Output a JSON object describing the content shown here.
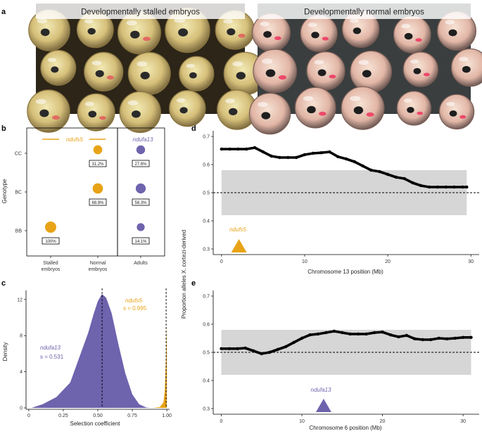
{
  "colors": {
    "ndufs5": "#e8a317",
    "ndufa13": "#6e63ad",
    "null_band": "#d6d6d6",
    "line": "#000000"
  },
  "panel_a": {
    "letter": "a",
    "left_caption": "Developmentally stalled embryos",
    "right_caption": "Developmentally normal embryos"
  },
  "panel_b": {
    "letter": "b",
    "ylabel": "Genotype",
    "genotypes": [
      "CC",
      "BC",
      "BB"
    ],
    "groups": [
      "Stalled embryos",
      "Normal embryos",
      "Adults"
    ],
    "group_label_lines": [
      [
        "Stalled",
        "embryos"
      ],
      [
        "Normal",
        "embryos"
      ],
      [
        "Adults"
      ]
    ],
    "gene_left": "ndufs5",
    "gene_right": "ndufa13",
    "chart_data": {
      "type": "scatter",
      "title": "",
      "xlabel": "",
      "ylabel": "Genotype",
      "series": [
        {
          "name": "ndufs5 stalled embryos",
          "genotypes": [
            "BB"
          ],
          "percent": [
            100
          ],
          "labels": [
            "100%"
          ]
        },
        {
          "name": "ndufs5 normal embryos",
          "genotypes": [
            "CC",
            "BC"
          ],
          "percent": [
            31.2,
            68.8
          ],
          "labels": [
            "31.2%",
            "68.8%"
          ]
        },
        {
          "name": "ndufa13 adults",
          "genotypes": [
            "CC",
            "BC",
            "BB"
          ],
          "percent": [
            27.6,
            58.3,
            14.1
          ],
          "labels": [
            "27.6%",
            "58.3%",
            "14.1%"
          ]
        }
      ]
    }
  },
  "panel_c": {
    "letter": "c",
    "ylabel": "Density",
    "xlabel": "Selection coefficient",
    "gene_ndufa13": "ndufa13",
    "s_ndufa13": "s = 0.531",
    "gene_ndufs5": "ndufs5",
    "s_ndufs5": "s = 0.995",
    "chart_data": {
      "type": "area",
      "xlabel": "Selection coefficient",
      "ylabel": "Density",
      "xlim": [
        -0.02,
        1.02
      ],
      "ylim": [
        0,
        13
      ],
      "xticks": [
        0,
        0.25,
        0.5,
        0.75,
        1
      ],
      "xtick_labels": [
        "0",
        "0.25",
        "0.50",
        "0.75",
        "1.00"
      ],
      "yticks": [
        0,
        4,
        8,
        12
      ],
      "ytick_labels": [
        "0",
        "4",
        "8",
        "12"
      ],
      "series": [
        {
          "name": "ndufa13",
          "x": [
            0.02,
            0.1,
            0.2,
            0.3,
            0.38,
            0.43,
            0.47,
            0.5,
            0.53,
            0.56,
            0.6,
            0.65,
            0.7,
            0.75,
            0.8,
            0.85,
            0.88
          ],
          "y": [
            0,
            0.4,
            1.2,
            2.8,
            6.2,
            8.3,
            10.4,
            11.8,
            12.6,
            12.2,
            10.5,
            7.0,
            3.8,
            1.5,
            0.4,
            0.05,
            0
          ]
        },
        {
          "name": "ndufs5",
          "x": [
            0.9,
            0.95,
            0.975,
            0.985,
            0.99,
            0.995,
            1.0
          ],
          "y": [
            0,
            0.1,
            0.6,
            1.8,
            3.8,
            6.0,
            9.2
          ]
        }
      ],
      "vlines": [
        0.531,
        0.995
      ]
    }
  },
  "panel_shared": {
    "ylabel": "Proportion alleles X. cortezi-derived"
  },
  "panel_d": {
    "letter": "d",
    "xlabel": "Chromosome 13 position (Mb)",
    "gene": "ndufs5",
    "chart_data": {
      "type": "scatter",
      "xlabel": "Chromosome 13 position (Mb)",
      "ylabel": "Proportion alleles X. cortezi-derived",
      "xlim": [
        -1,
        31
      ],
      "ylim": [
        0.28,
        0.72
      ],
      "xticks": [
        0,
        10,
        20,
        30
      ],
      "xtick_labels": [
        "0",
        "10",
        "20",
        "30"
      ],
      "yticks": [
        0.3,
        0.4,
        0.5,
        0.6,
        0.7
      ],
      "ytick_labels": [
        "0.3",
        "0.4",
        "0.5",
        "0.6",
        "0.7"
      ],
      "null_band": [
        0.42,
        0.58
      ],
      "reference_line": 0.5,
      "gene_position_mb": 2.1,
      "x": [
        0,
        1,
        2,
        3,
        4,
        5,
        6,
        7,
        8,
        9,
        10,
        11,
        12,
        13,
        14,
        15,
        16,
        17,
        18,
        19,
        20,
        21,
        22,
        23,
        24,
        25,
        26,
        27,
        28,
        29,
        29.5
      ],
      "y": [
        0.655,
        0.655,
        0.655,
        0.655,
        0.66,
        0.645,
        0.63,
        0.625,
        0.625,
        0.625,
        0.635,
        0.64,
        0.642,
        0.645,
        0.628,
        0.62,
        0.61,
        0.595,
        0.58,
        0.575,
        0.565,
        0.555,
        0.55,
        0.535,
        0.525,
        0.52,
        0.52,
        0.52,
        0.52,
        0.52,
        0.52
      ]
    }
  },
  "panel_e": {
    "letter": "e",
    "xlabel": "Chromosome 6 position (Mb)",
    "gene": "ndufa13",
    "chart_data": {
      "type": "scatter",
      "xlabel": "Chromosome 6 position (Mb)",
      "ylabel": "Proportion alleles X. cortezi-derived",
      "xlim": [
        -1,
        32
      ],
      "ylim": [
        0.28,
        0.72
      ],
      "xticks": [
        0,
        10,
        20,
        30
      ],
      "xtick_labels": [
        "0",
        "10",
        "20",
        "30"
      ],
      "yticks": [
        0.3,
        0.4,
        0.5,
        0.6,
        0.7
      ],
      "ytick_labels": [
        "0.3",
        "0.4",
        "0.5",
        "0.6",
        "0.7"
      ],
      "null_band": [
        0.42,
        0.58
      ],
      "reference_line": 0.5,
      "gene_position_mb": 12.7,
      "x": [
        0,
        1,
        2,
        3,
        4,
        5,
        6,
        7,
        8,
        9,
        10,
        11,
        12,
        13,
        14,
        15,
        16,
        17,
        18,
        19,
        20,
        21,
        22,
        23,
        24,
        25,
        26,
        27,
        28,
        29,
        30,
        31
      ],
      "y": [
        0.513,
        0.513,
        0.513,
        0.515,
        0.505,
        0.495,
        0.5,
        0.51,
        0.52,
        0.535,
        0.55,
        0.562,
        0.565,
        0.57,
        0.575,
        0.57,
        0.565,
        0.565,
        0.565,
        0.57,
        0.572,
        0.562,
        0.555,
        0.56,
        0.548,
        0.545,
        0.545,
        0.55,
        0.548,
        0.55,
        0.553,
        0.553
      ]
    }
  }
}
